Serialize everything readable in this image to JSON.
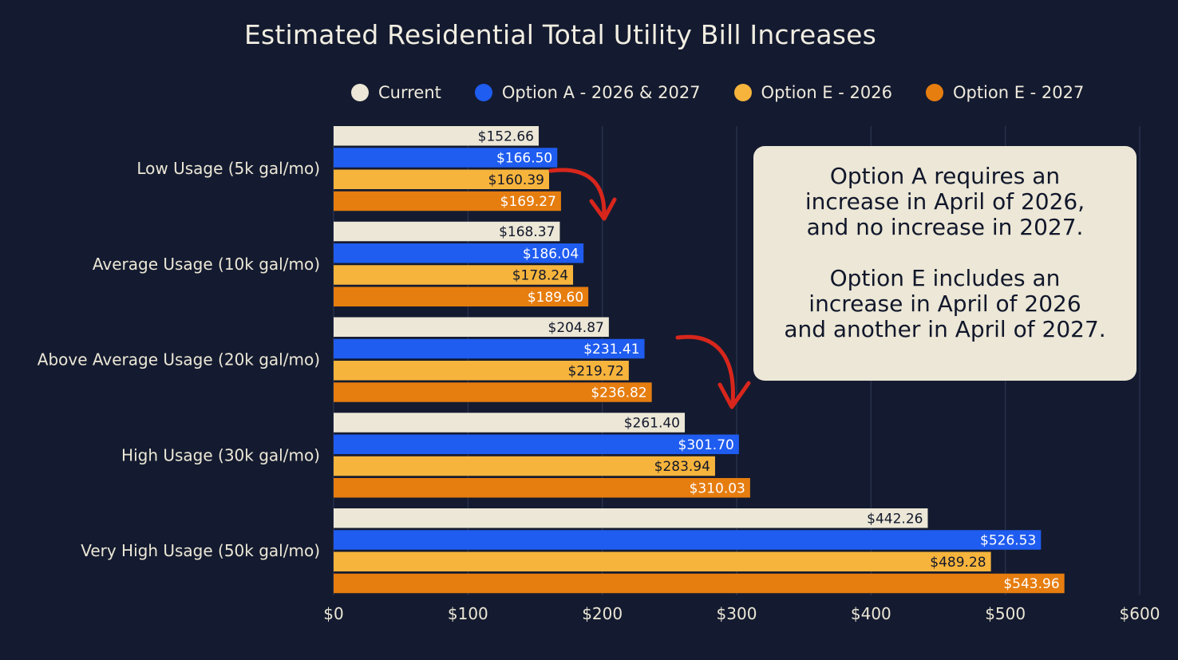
{
  "chart_data": {
    "type": "bar",
    "orientation": "horizontal",
    "title": "Estimated Residential Total Utility Bill Increases",
    "categories": [
      "Low Usage (5k gal/mo)",
      "Average Usage (10k gal/mo)",
      "Above Average Usage (20k gal/mo)",
      "High Usage (30k gal/mo)",
      "Very High Usage (50k gal/mo)"
    ],
    "series": [
      {
        "name": "Current",
        "color": "#ece7d6",
        "values": [
          152.66,
          168.37,
          204.87,
          261.4,
          442.26
        ],
        "labels": [
          "$152.66",
          "$168.37",
          "$204.87",
          "$261.40",
          "$442.26"
        ]
      },
      {
        "name": "Option A - 2026 & 2027",
        "color": "#1f5cf0",
        "values": [
          166.5,
          186.04,
          231.41,
          301.7,
          526.53
        ],
        "labels": [
          "$166.50",
          "$186.04",
          "$231.41",
          "$301.70",
          "$526.53"
        ]
      },
      {
        "name": "Option E - 2026",
        "color": "#f7b43c",
        "values": [
          160.39,
          178.24,
          219.72,
          283.94,
          489.28
        ],
        "labels": [
          "$160.39",
          "$178.24",
          "$219.72",
          "$283.94",
          "$489.28"
        ]
      },
      {
        "name": "Option E - 2027",
        "color": "#e67d0f",
        "values": [
          169.27,
          189.6,
          236.82,
          310.03,
          543.96
        ],
        "labels": [
          "$169.27",
          "$189.60",
          "$236.82",
          "$310.03",
          "$543.96"
        ]
      }
    ],
    "label_colors": [
      "#11172b",
      "#ffffff",
      "#11172b",
      "#ffffff"
    ],
    "xlim": [
      0,
      600
    ],
    "xticks": [
      {
        "value": 0,
        "label": "$0"
      },
      {
        "value": 100,
        "label": "$100"
      },
      {
        "value": 200,
        "label": "$200"
      },
      {
        "value": 300,
        "label": "$300"
      },
      {
        "value": 400,
        "label": "$400"
      },
      {
        "value": 500,
        "label": "$500"
      },
      {
        "value": 600,
        "label": "$600"
      }
    ],
    "grid": "vertical",
    "legend_position": "top",
    "annotation_lines": [
      [
        "Option A requires an",
        "increase in April of 2026,",
        "and no increase in 2027."
      ],
      [
        "Option E includes an",
        "increase in April of 2026",
        "and another in April of 2027."
      ]
    ],
    "arrow_color": "#d8261c"
  },
  "colors": {
    "background": "#141b30",
    "gridline": "#2c3550",
    "text": "#ece7d6"
  }
}
